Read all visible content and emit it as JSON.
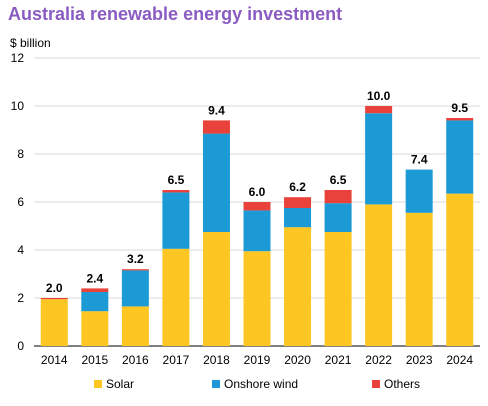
{
  "title": "Australia renewable energy investment",
  "chart_data": {
    "type": "bar",
    "stacked": true,
    "title": "Australia renewable energy investment",
    "ylabel": "$ billion",
    "xlabel": "",
    "ylim": [
      0,
      12
    ],
    "yticks": [
      0,
      2,
      4,
      6,
      8,
      10,
      12
    ],
    "grid": true,
    "legend_position": "bottom",
    "categories": [
      "2014",
      "2015",
      "2016",
      "2017",
      "2018",
      "2019",
      "2020",
      "2021",
      "2022",
      "2023",
      "2024"
    ],
    "series": [
      {
        "name": "Solar",
        "color": "#fdc623",
        "values": [
          1.95,
          1.45,
          1.65,
          4.05,
          4.75,
          3.95,
          4.95,
          4.75,
          5.9,
          5.55,
          6.35
        ]
      },
      {
        "name": "Onshore wind",
        "color": "#1b9ad6",
        "values": [
          0.0,
          0.8,
          1.5,
          2.35,
          4.1,
          1.7,
          0.8,
          1.2,
          3.8,
          1.8,
          3.05
        ]
      },
      {
        "name": "Others",
        "color": "#e8423a",
        "values": [
          0.05,
          0.15,
          0.05,
          0.1,
          0.55,
          0.35,
          0.45,
          0.55,
          0.3,
          0.0,
          0.1
        ]
      }
    ],
    "totals": [
      "2.0",
      "2.4",
      "3.2",
      "6.5",
      "9.4",
      "6.0",
      "6.2",
      "6.5",
      "10.0",
      "7.4",
      "9.5"
    ]
  }
}
